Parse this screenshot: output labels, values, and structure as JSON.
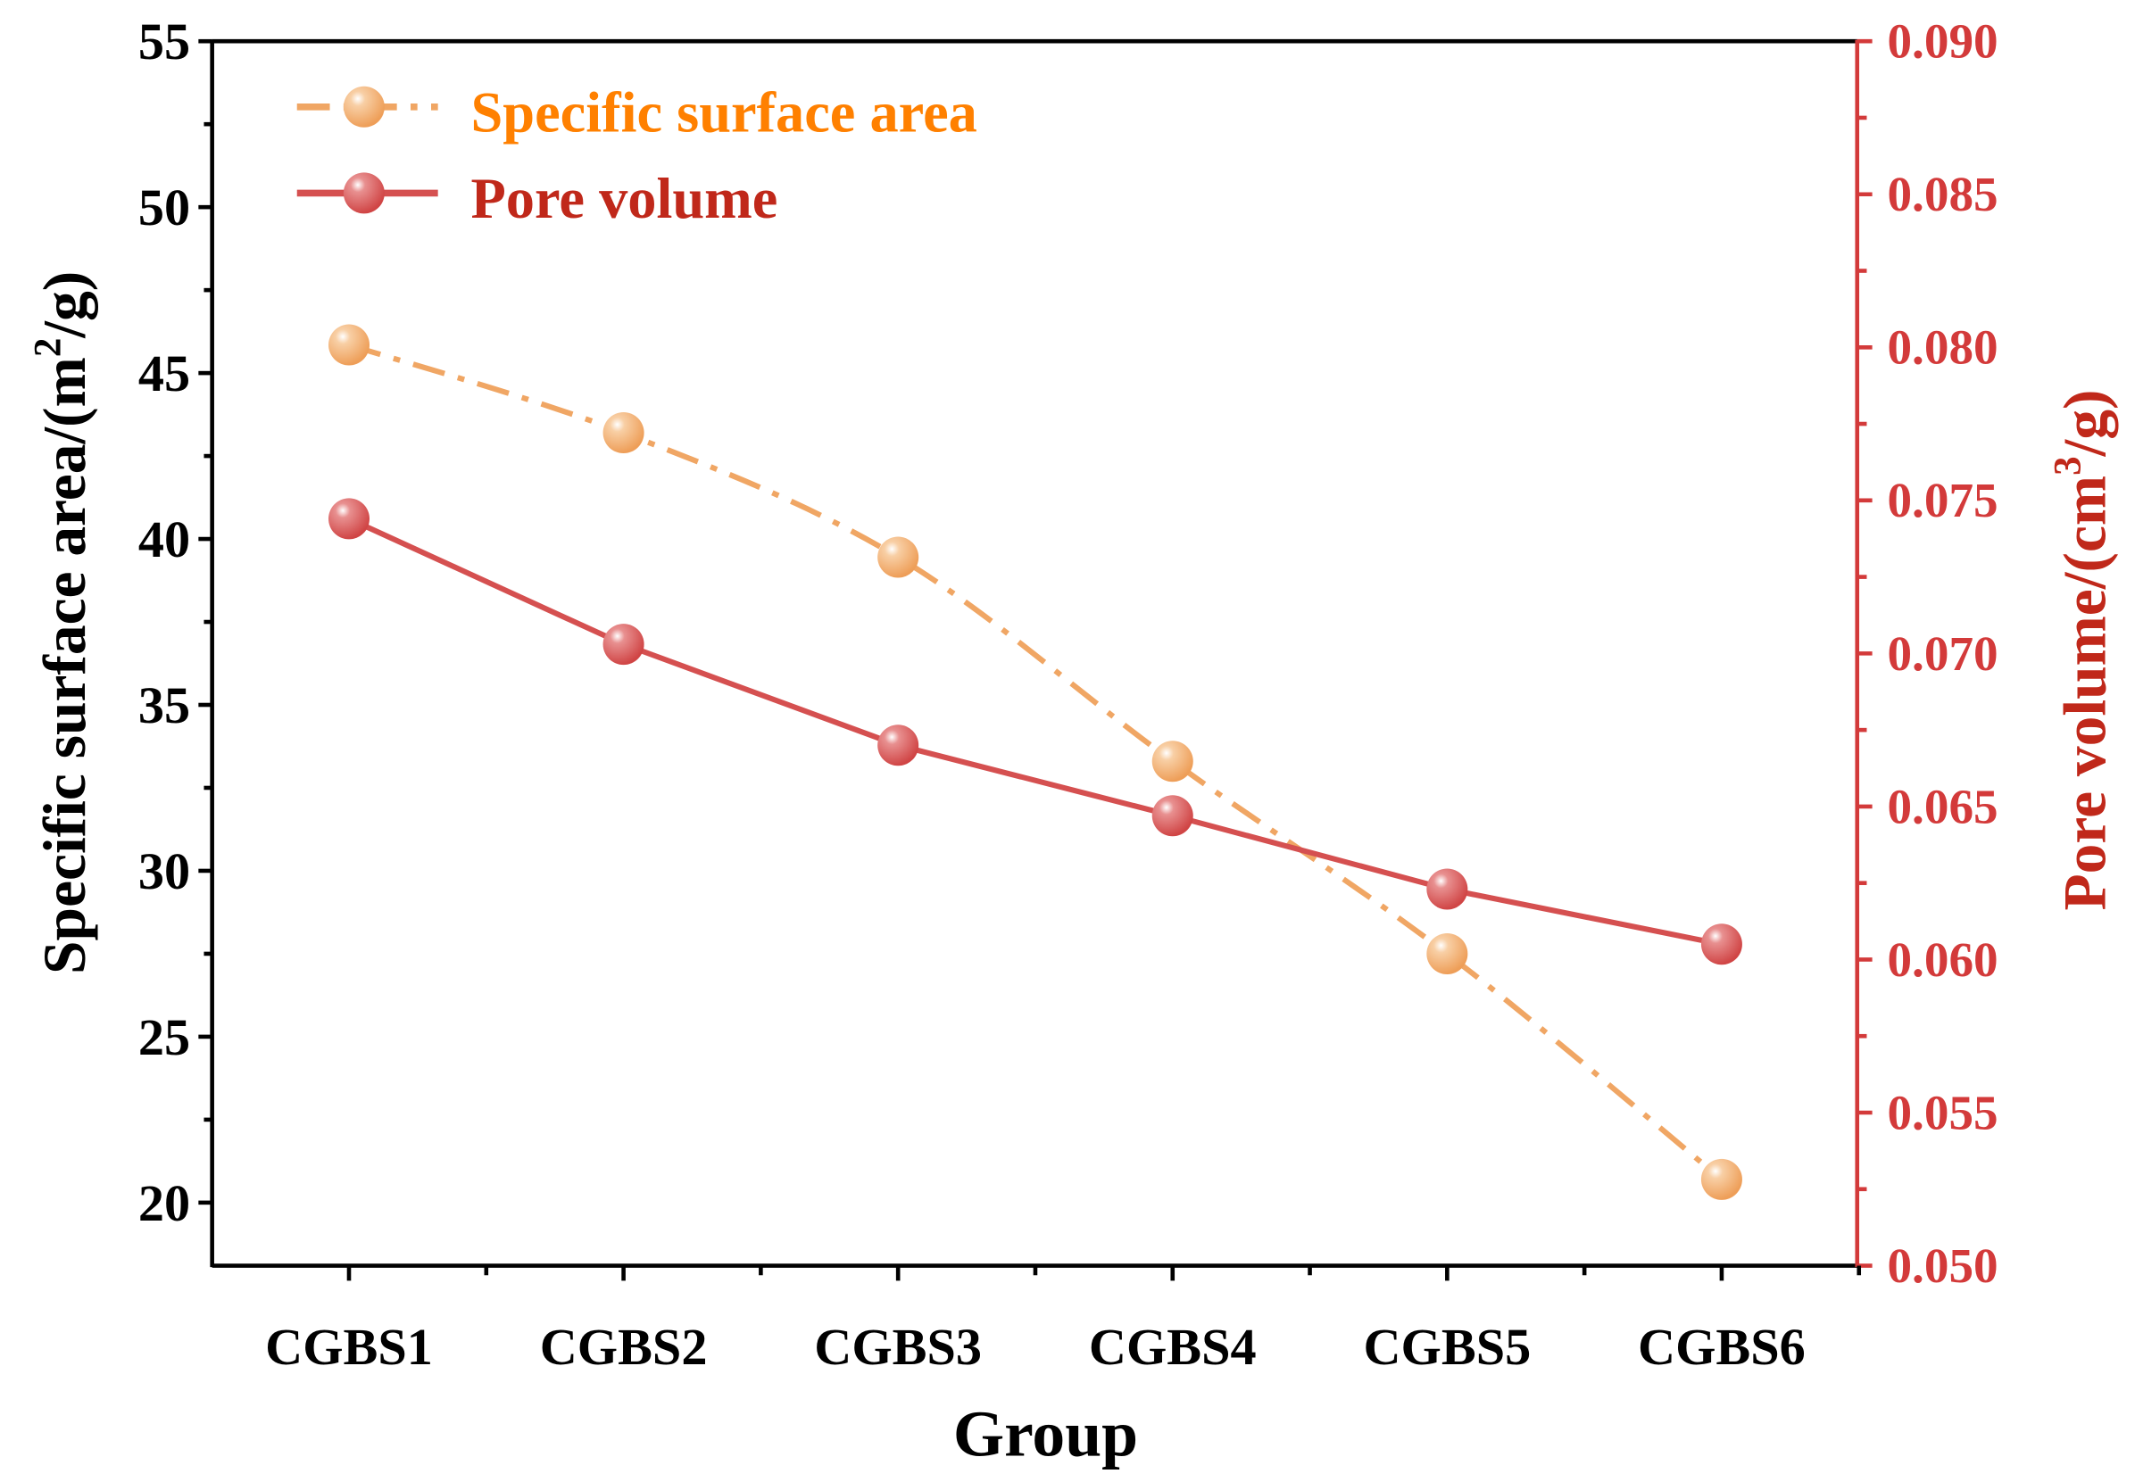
{
  "chart_data": {
    "type": "line",
    "categories": [
      "CGBS1",
      "CGBS2",
      "CGBS3",
      "CGBS4",
      "CGBS5",
      "CGBS6"
    ],
    "xlabel": "Group",
    "ylabel_left": "Specific surface area/(m²/g)",
    "ylabel_left_parts": [
      "Specific surface area/(m",
      "2",
      "/g)"
    ],
    "ylabel_right": "Pore volume/(cm³/g)",
    "ylabel_right_parts": [
      "Pore volume/(cm",
      "3",
      "/g)"
    ],
    "ylim_left": [
      18.1,
      55
    ],
    "ylim_right": [
      0.05,
      0.09
    ],
    "yticks_left": [
      20,
      25,
      30,
      35,
      40,
      45,
      50,
      55
    ],
    "yticks_right": [
      "0.050",
      "0.055",
      "0.060",
      "0.065",
      "0.070",
      "0.075",
      "0.080",
      "0.085",
      "0.090"
    ],
    "legend_position": "top-left",
    "series": [
      {
        "name": "Specific surface area",
        "axis": "left",
        "style": "dash-dot",
        "color": "#F0A664",
        "text_color": "#FF8000",
        "values": [
          45.85,
          43.2,
          39.45,
          33.3,
          27.5,
          20.7
        ]
      },
      {
        "name": "Pore volume",
        "axis": "right",
        "style": "solid",
        "color": "#D55050",
        "text_color": "#C0281A",
        "values": [
          0.0744,
          0.0703,
          0.067,
          0.0647,
          0.0623,
          0.0605
        ]
      }
    ],
    "right_axis_color": "#D33A3A"
  }
}
